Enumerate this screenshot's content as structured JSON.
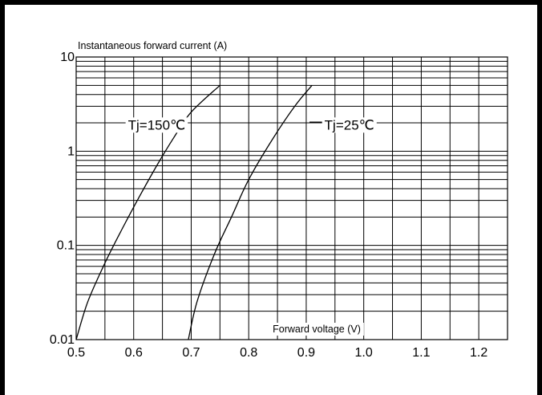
{
  "chart_data": {
    "type": "line",
    "ylabel": "Instantaneous forward current (A)",
    "xlabel": "Forward voltage (V)",
    "xlim": [
      0.5,
      1.25
    ],
    "ylim": [
      0.01,
      10
    ],
    "y_scale": "log",
    "grid": true,
    "x_ticks": [
      "0.5",
      "0.6",
      "0.7",
      "0.8",
      "0.9",
      "1.0",
      "1.1",
      "1.2"
    ],
    "x_tick_values": [
      0.5,
      0.6,
      0.7,
      0.8,
      0.9,
      1.0,
      1.1,
      1.2
    ],
    "y_ticks": [
      "0.01",
      "0.1",
      "1",
      "10"
    ],
    "y_tick_values": [
      0.01,
      0.1,
      1,
      10
    ],
    "series": [
      {
        "points": [
          [
            0.5,
            0.01
          ],
          [
            0.52,
            0.025
          ],
          [
            0.55,
            0.065
          ],
          [
            0.58,
            0.15
          ],
          [
            0.61,
            0.33
          ],
          [
            0.64,
            0.7
          ],
          [
            0.67,
            1.4
          ],
          [
            0.7,
            2.6
          ],
          [
            0.75,
            5.0
          ]
        ]
      },
      {
        "points": [
          [
            0.695,
            0.01
          ],
          [
            0.71,
            0.025
          ],
          [
            0.74,
            0.08
          ],
          [
            0.77,
            0.2
          ],
          [
            0.8,
            0.5
          ],
          [
            0.84,
            1.3
          ],
          [
            0.88,
            3.0
          ],
          [
            0.91,
            5.0
          ]
        ]
      }
    ],
    "annotations": [
      {
        "text": "Tj=150℃",
        "x": 0.64,
        "y": 1.7
      },
      {
        "text": "Tj=25℃",
        "x": 0.975,
        "y": 1.7
      }
    ]
  }
}
